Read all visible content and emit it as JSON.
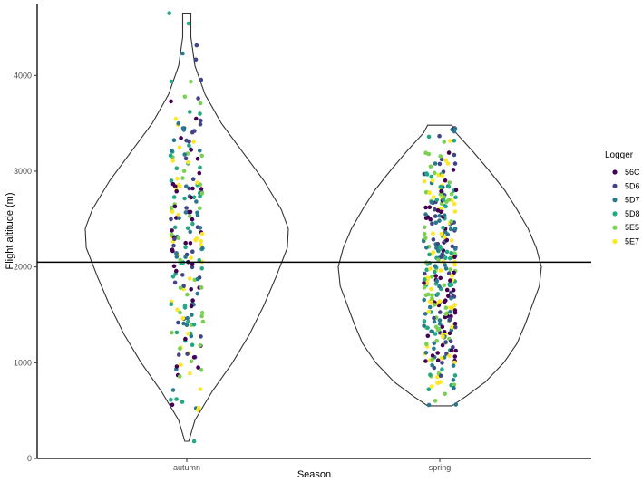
{
  "chart_data": {
    "type": "scatter",
    "subtype": "violin-with-jittered-points",
    "xlabel": "Season",
    "ylabel": "Flight altitude (m)",
    "categories": [
      "autumn",
      "spring"
    ],
    "ylim": [
      0,
      4750
    ],
    "yticks": [
      0,
      1000,
      2000,
      3000,
      4000
    ],
    "reference_line_y": 2050,
    "grid": false,
    "legend": {
      "title": "Logger",
      "position": "right",
      "entries": [
        {
          "name": "56C",
          "color": "#440154"
        },
        {
          "name": "5D6",
          "color": "#414487"
        },
        {
          "name": "5D7",
          "color": "#2A788E"
        },
        {
          "name": "5D8",
          "color": "#22A884"
        },
        {
          "name": "5E5",
          "color": "#7AD151"
        },
        {
          "name": "5E7",
          "color": "#FDE725"
        }
      ]
    },
    "violins": [
      {
        "category": "autumn",
        "min": 180,
        "max": 4650,
        "profile": [
          [
            180,
            0.02
          ],
          [
            400,
            0.08
          ],
          [
            700,
            0.25
          ],
          [
            1000,
            0.45
          ],
          [
            1300,
            0.62
          ],
          [
            1600,
            0.76
          ],
          [
            1900,
            0.88
          ],
          [
            2200,
            0.99
          ],
          [
            2400,
            1.0
          ],
          [
            2600,
            0.93
          ],
          [
            2900,
            0.76
          ],
          [
            3200,
            0.55
          ],
          [
            3500,
            0.34
          ],
          [
            3800,
            0.18
          ],
          [
            4100,
            0.08
          ],
          [
            4400,
            0.04
          ],
          [
            4650,
            0.04
          ]
        ]
      },
      {
        "category": "spring",
        "min": 550,
        "max": 3480,
        "profile": [
          [
            550,
            0.12
          ],
          [
            650,
            0.26
          ],
          [
            800,
            0.45
          ],
          [
            1000,
            0.63
          ],
          [
            1200,
            0.76
          ],
          [
            1400,
            0.84
          ],
          [
            1600,
            0.91
          ],
          [
            1800,
            0.98
          ],
          [
            2000,
            1.0
          ],
          [
            2200,
            0.95
          ],
          [
            2400,
            0.87
          ],
          [
            2600,
            0.76
          ],
          [
            2800,
            0.64
          ],
          [
            3000,
            0.49
          ],
          [
            3200,
            0.33
          ],
          [
            3400,
            0.16
          ],
          [
            3480,
            0.12
          ]
        ]
      }
    ],
    "points": [
      {
        "category": "autumn",
        "count": 220,
        "ymin": 180,
        "ymax": 4650,
        "outliers": [
          4650,
          4230,
          3760,
          180,
          560,
          620
        ]
      },
      {
        "category": "spring",
        "count": 330,
        "ymin": 550,
        "ymax": 3480,
        "outliers": []
      }
    ]
  }
}
